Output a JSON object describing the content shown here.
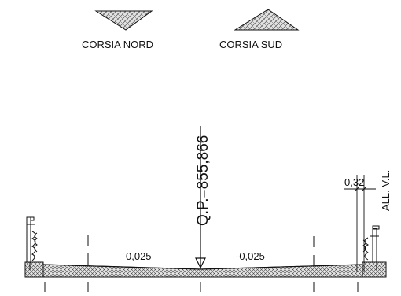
{
  "legend": {
    "north_label": "CORSIA NORD",
    "south_label": "CORSIA SUD"
  },
  "drawing": {
    "elevation_label": "Q.P.=855,866",
    "slope_left": "0,025",
    "slope_right": "-0,025",
    "offset_dimension": "0,32",
    "guardrail_label": "ALL. V.L."
  },
  "colors": {
    "line": "#111111",
    "hatch_fill": "#cfcfcf"
  }
}
